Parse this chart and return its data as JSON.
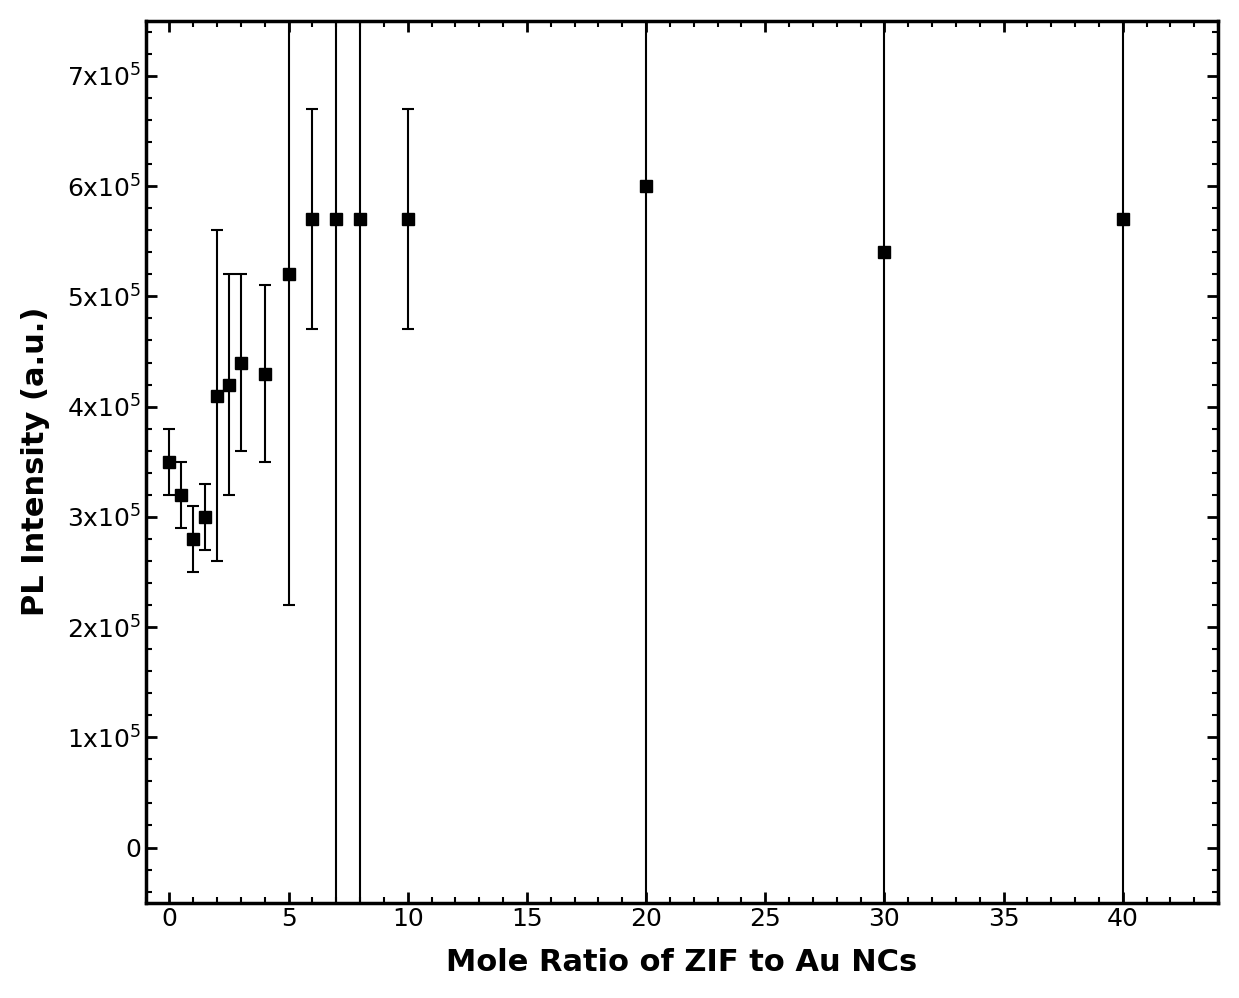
{
  "x": [
    0,
    0.5,
    1,
    1.5,
    2,
    2.5,
    3,
    4,
    5,
    6,
    7,
    8,
    10,
    20,
    30,
    40
  ],
  "y": [
    350000,
    320000,
    280000,
    300000,
    410000,
    420000,
    440000,
    430000,
    520000,
    570000,
    570000,
    570000,
    570000,
    600000,
    540000,
    570000
  ],
  "yerr": [
    30000,
    30000,
    30000,
    30000,
    150000,
    100000,
    80000,
    80000,
    300000,
    100000,
    650000,
    650000,
    100000,
    700000,
    600000,
    900000
  ],
  "xlabel": "Mole Ratio of ZIF to Au NCs",
  "ylabel": "PL Intensity (a.u.)",
  "xlim": [
    -1,
    44
  ],
  "ylim": [
    -50000,
    750000
  ],
  "xticks": [
    0,
    5,
    10,
    15,
    20,
    25,
    30,
    35,
    40
  ],
  "ytick_vals": [
    0,
    100000,
    200000,
    300000,
    400000,
    500000,
    600000,
    700000
  ],
  "ytick_labels": [
    "0",
    "1x10$^5$",
    "2x10$^5$",
    "3x10$^5$",
    "4x10$^5$",
    "5x10$^5$",
    "6x10$^5$",
    "7x10$^5$"
  ],
  "line_color": "black",
  "marker": "s",
  "marker_size": 8,
  "line_width": 2.5,
  "capsize": 4,
  "background_color": "#ffffff"
}
